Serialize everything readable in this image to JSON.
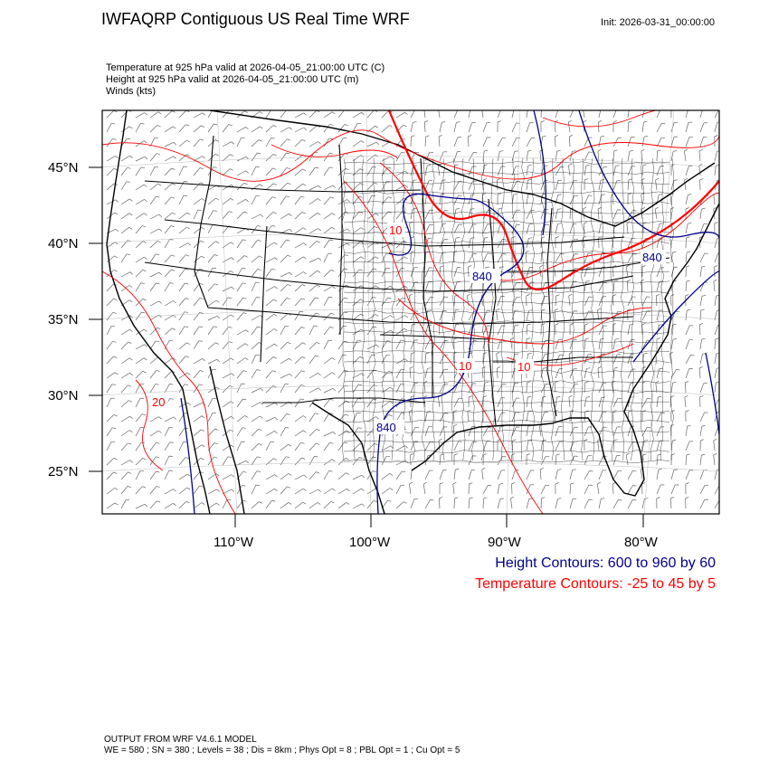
{
  "header": {
    "title": "IWFAQRP Contiguous US Real Time WRF",
    "init": "Init: 2026-03-31_00:00:00"
  },
  "fields": {
    "temperature": "Temperature at 925 hPa valid at 2026-04-05_21:00:00 UTC   (C)",
    "height": "Height at 925 hPa valid at 2026-04-05_21:00:00 UTC   (m)",
    "winds": "Winds   (kts)"
  },
  "map": {
    "projection": "lambert-conformal",
    "lat_labels": [
      "45°N",
      "40°N",
      "35°N",
      "30°N",
      "25°N"
    ],
    "lon_labels": [
      "110°W",
      "100°W",
      "90°W",
      "80°W"
    ],
    "contour_labels": {
      "height": [
        "840",
        "840",
        "840"
      ],
      "temperature": [
        "10",
        "10",
        "10",
        "20"
      ]
    },
    "colors": {
      "height": "#00008b",
      "temperature": "#ff0000",
      "boundaries": "#000000",
      "wind_barbs": "#555555"
    }
  },
  "legend": {
    "height": "Height Contours: 600 to 960 by 60",
    "temperature": "Temperature Contours: -25 to 45 by 5"
  },
  "footer": {
    "line1": "OUTPUT FROM WRF V4.6.1 MODEL",
    "line2": "WE = 580 ; SN = 380 ; Levels = 38 ; Dis = 8km ; Phys Opt = 8 ; PBL Opt = 1 ; Cu Opt = 5"
  }
}
